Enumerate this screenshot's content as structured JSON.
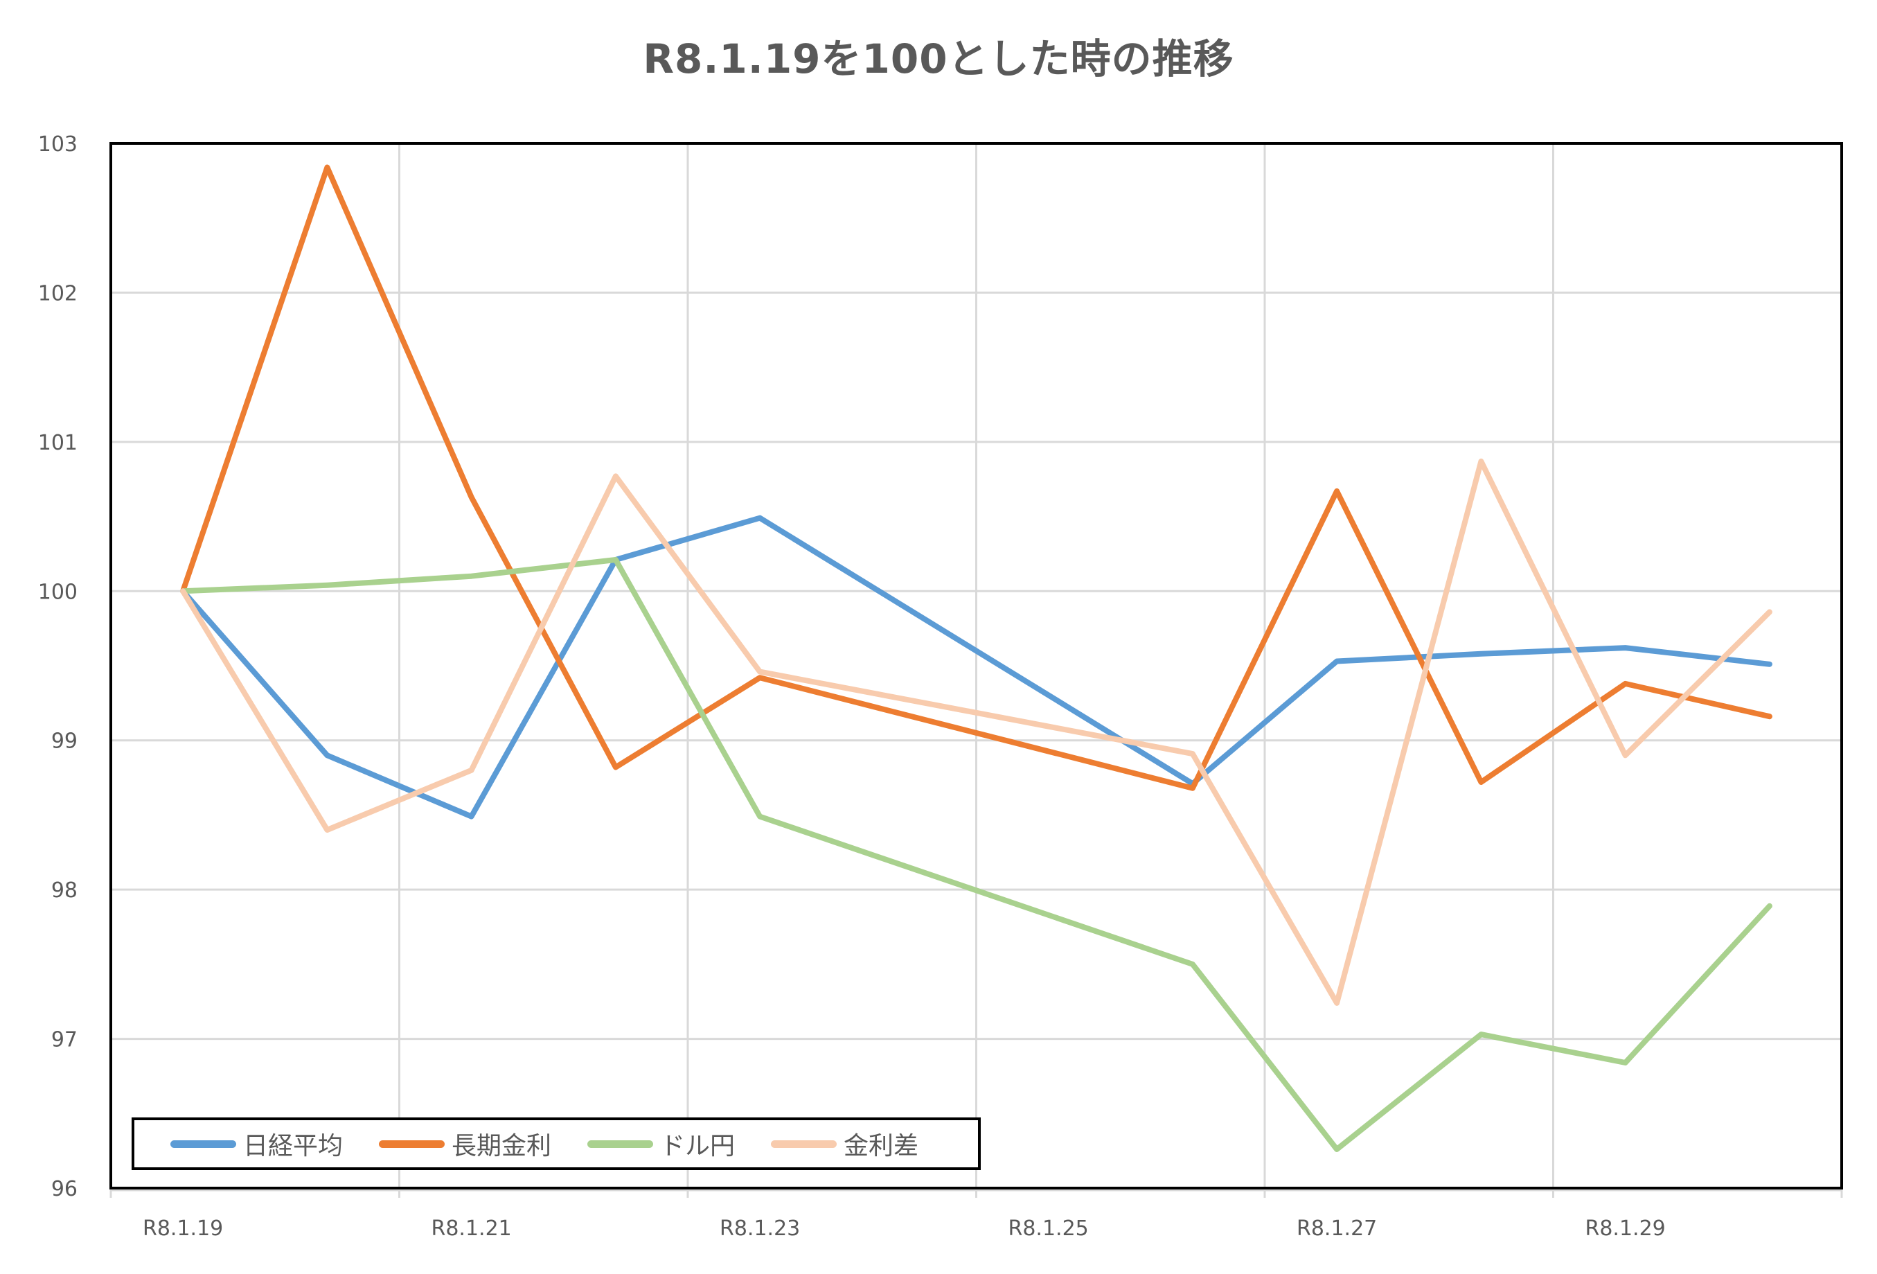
{
  "title": "R8.1.19を100とした時の推移",
  "chart_data": {
    "type": "line",
    "title": "R8.1.19を100とした時の推移",
    "xlabel": "",
    "ylabel": "",
    "ylim": [
      96,
      103
    ],
    "yticks": [
      103,
      102,
      101,
      100,
      99,
      98,
      97,
      96
    ],
    "x_tick_labels": [
      "R8.1.19",
      "R8.1.21",
      "R8.1.23",
      "R8.1.25",
      "R8.1.27",
      "R8.1.29"
    ],
    "x_axis_range_days": [
      19,
      31
    ],
    "grid": true,
    "legend_position": "bottom-left inside plot",
    "x": [
      "R8.1.19",
      "R8.1.20",
      "R8.1.21",
      "R8.1.22",
      "R8.1.23",
      "R8.1.26",
      "R8.1.27",
      "R8.1.28",
      "R8.1.29",
      "R8.1.30"
    ],
    "x_day": [
      19,
      20,
      21,
      22,
      23,
      26,
      27,
      28,
      29,
      30
    ],
    "series": [
      {
        "name": "日経平均",
        "color": "#5B9BD5",
        "values": [
          100,
          98.9,
          98.49,
          100.21,
          100.49,
          98.71,
          99.53,
          99.58,
          99.62,
          99.51
        ]
      },
      {
        "name": "長期金利",
        "color": "#ED7D31",
        "values": [
          100,
          102.84,
          100.63,
          98.82,
          99.42,
          98.68,
          100.67,
          98.72,
          99.38,
          99.16
        ]
      },
      {
        "name": "ドル円",
        "color": "#A9D18E",
        "values": [
          100,
          100.04,
          100.1,
          100.21,
          98.49,
          97.5,
          96.26,
          97.03,
          96.84,
          97.89
        ]
      },
      {
        "name": "金利差",
        "color": "#F8CBAD",
        "values": [
          100,
          98.4,
          98.8,
          100.77,
          99.46,
          98.91,
          97.24,
          100.87,
          98.9,
          99.86
        ]
      }
    ]
  },
  "legend": {
    "items": [
      {
        "label": "日経平均",
        "color": "#5B9BD5"
      },
      {
        "label": "長期金利",
        "color": "#ED7D31"
      },
      {
        "label": "ドル円",
        "color": "#A9D18E"
      },
      {
        "label": "金利差",
        "color": "#F8CBAD"
      }
    ]
  }
}
